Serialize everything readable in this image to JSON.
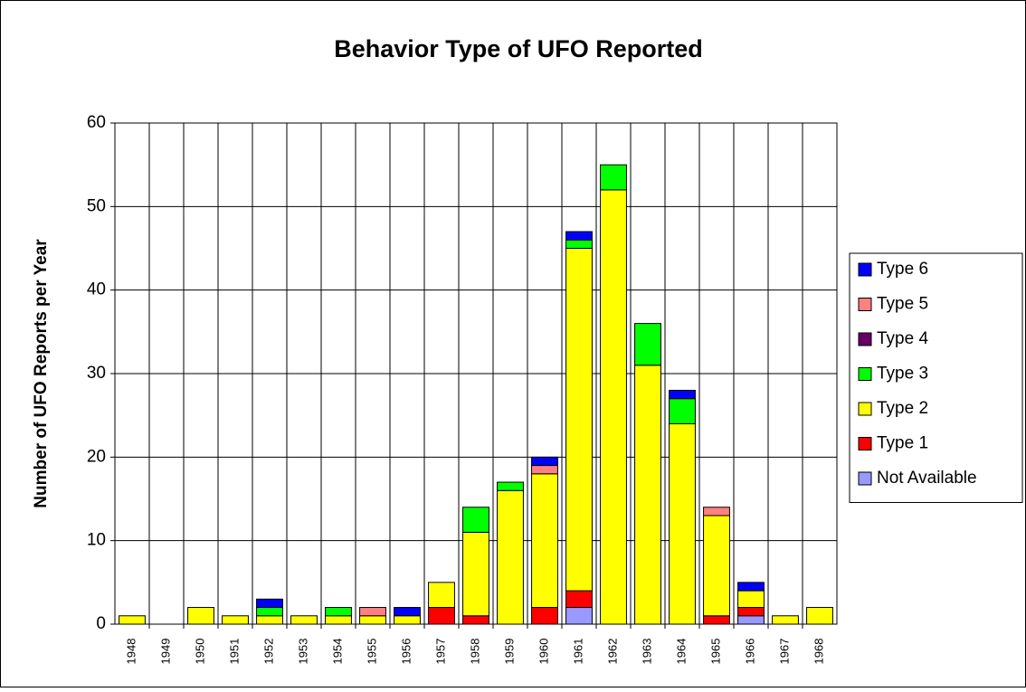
{
  "chart_data": {
    "type": "stacked_bar",
    "title": "Behavior Type of UFO Reported",
    "y_label": "Number of UFO Reports per Year",
    "categories": [
      "1948",
      "1949",
      "1950",
      "1951",
      "1952",
      "1953",
      "1954",
      "1955",
      "1956",
      "1957",
      "1958",
      "1959",
      "1960",
      "1961",
      "1962",
      "1963",
      "1964",
      "1965",
      "1966",
      "1967",
      "1968"
    ],
    "series": [
      {
        "name": "Not Available",
        "color": "#9999ff",
        "values": [
          0,
          0,
          0,
          0,
          0,
          0,
          0,
          0,
          0,
          0,
          0,
          0,
          0,
          2,
          0,
          0,
          0,
          0,
          1,
          0,
          0
        ]
      },
      {
        "name": "Type 1",
        "color": "#ff0000",
        "values": [
          0,
          0,
          0,
          0,
          0,
          0,
          0,
          0,
          0,
          2,
          1,
          0,
          2,
          2,
          0,
          0,
          0,
          1,
          1,
          0,
          0
        ]
      },
      {
        "name": "Type 2",
        "color": "#ffff00",
        "values": [
          1,
          0,
          2,
          1,
          1,
          1,
          1,
          1,
          1,
          3,
          10,
          16,
          16,
          41,
          52,
          31,
          24,
          12,
          2,
          1,
          2
        ]
      },
      {
        "name": "Type 3",
        "color": "#00ff00",
        "values": [
          0,
          0,
          0,
          0,
          1,
          0,
          1,
          0,
          0,
          0,
          3,
          1,
          0,
          1,
          3,
          5,
          3,
          0,
          0,
          0,
          0
        ]
      },
      {
        "name": "Type 4",
        "color": "#660066",
        "values": [
          0,
          0,
          0,
          0,
          0,
          0,
          0,
          0,
          0,
          0,
          0,
          0,
          0,
          0,
          0,
          0,
          0,
          0,
          0,
          0,
          0
        ]
      },
      {
        "name": "Type 5",
        "color": "#ff8080",
        "values": [
          0,
          0,
          0,
          0,
          0,
          0,
          0,
          1,
          0,
          0,
          0,
          0,
          1,
          0,
          0,
          0,
          0,
          1,
          0,
          0,
          0
        ]
      },
      {
        "name": "Type 6",
        "color": "#0000ff",
        "values": [
          0,
          0,
          0,
          0,
          1,
          0,
          0,
          0,
          1,
          0,
          0,
          0,
          1,
          1,
          0,
          0,
          1,
          0,
          1,
          0,
          0
        ]
      }
    ],
    "ylim": [
      0,
      60
    ],
    "yticks": [
      0,
      10,
      20,
      30,
      40,
      50,
      60
    ],
    "grid": true,
    "legend": "right"
  }
}
